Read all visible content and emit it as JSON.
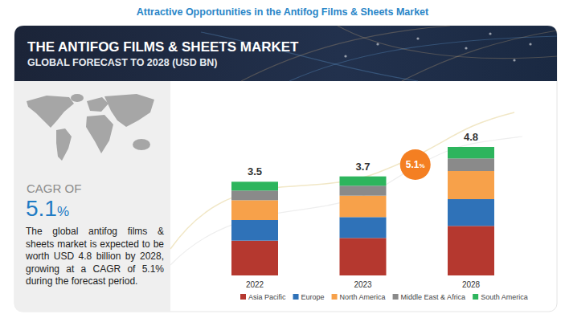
{
  "heading": "Attractive Opportunities in the Antifog Films & Sheets Market",
  "side_panel": {
    "label": "CAGR OF",
    "value": "5.1%",
    "text": "The global antifog films & sheets market is expected to be worth USD 4.8 billion by 2028, growing at a CAGR of 5.1% during the forecast period."
  },
  "chart_data": {
    "type": "bar",
    "title": "THE ANTIFOG FILMS & SHEETS MARKET",
    "subtitle": "GLOBAL FORECAST TO 2028 (USD BN)",
    "categories": [
      "2022",
      "2023",
      "2028"
    ],
    "series": [
      {
        "name": "Asia Pacific",
        "color": "#b5382f",
        "values": [
          1.3,
          1.4,
          1.85
        ]
      },
      {
        "name": "Europe",
        "color": "#2f72b8",
        "values": [
          0.77,
          0.78,
          1.0
        ]
      },
      {
        "name": "North America",
        "color": "#f7a14a",
        "values": [
          0.74,
          0.8,
          1.05
        ]
      },
      {
        "name": "Middle East & Africa",
        "color": "#8a8a8a",
        "values": [
          0.36,
          0.37,
          0.47
        ]
      },
      {
        "name": "South America",
        "color": "#2db55d",
        "values": [
          0.33,
          0.35,
          0.43
        ]
      }
    ],
    "totals": [
      3.5,
      3.7,
      4.8
    ],
    "stacked": true,
    "legend": "bottom",
    "tick_labels": "x",
    "annotations": [
      {
        "text": "5.1%"
      }
    ]
  }
}
